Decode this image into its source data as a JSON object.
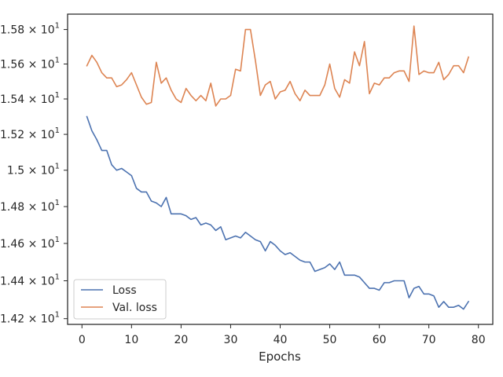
{
  "chart_data": {
    "type": "line",
    "xlabel": "Epochs",
    "ylabel": "",
    "xlim": [
      -2.9,
      82.9
    ],
    "ylim": [
      14.17,
      15.89
    ],
    "x_ticks": [
      0,
      10,
      20,
      30,
      40,
      50,
      60,
      70,
      80
    ],
    "x_tick_labels": [
      "0",
      "10",
      "20",
      "30",
      "40",
      "50",
      "60",
      "70",
      "80"
    ],
    "y_ticks": [
      14.2,
      14.4,
      14.6,
      14.8,
      15.0,
      15.2,
      15.4,
      15.6,
      15.8
    ],
    "y_tick_labels": [
      {
        "mantissa": "1.42",
        "exp": "1"
      },
      {
        "mantissa": "1.44",
        "exp": "1"
      },
      {
        "mantissa": "1.46",
        "exp": "1"
      },
      {
        "mantissa": "1.48",
        "exp": "1"
      },
      {
        "mantissa": "1.5",
        "exp": "1"
      },
      {
        "mantissa": "1.52",
        "exp": "1"
      },
      {
        "mantissa": "1.54",
        "exp": "1"
      },
      {
        "mantissa": "1.56",
        "exp": "1"
      },
      {
        "mantissa": "1.58",
        "exp": "1"
      }
    ],
    "y_scale": "log",
    "grid": false,
    "legend_position": "lower-left",
    "x": [
      1,
      2,
      3,
      4,
      5,
      6,
      7,
      8,
      9,
      10,
      11,
      12,
      13,
      14,
      15,
      16,
      17,
      18,
      19,
      20,
      21,
      22,
      23,
      24,
      25,
      26,
      27,
      28,
      29,
      30,
      31,
      32,
      33,
      34,
      35,
      36,
      37,
      38,
      39,
      40,
      41,
      42,
      43,
      44,
      45,
      46,
      47,
      48,
      49,
      50,
      51,
      52,
      53,
      54,
      55,
      56,
      57,
      58,
      59,
      60,
      61,
      62,
      63,
      64,
      65,
      66,
      67,
      68,
      69,
      70,
      71,
      72,
      73,
      74,
      75,
      76,
      77,
      78
    ],
    "series": [
      {
        "name": "Loss",
        "color": "#4c72b0",
        "values": [
          15.3,
          15.22,
          15.17,
          15.11,
          15.11,
          15.03,
          15.0,
          15.01,
          14.99,
          14.97,
          14.9,
          14.88,
          14.88,
          14.83,
          14.82,
          14.8,
          14.85,
          14.76,
          14.76,
          14.76,
          14.75,
          14.73,
          14.74,
          14.7,
          14.71,
          14.7,
          14.67,
          14.69,
          14.62,
          14.63,
          14.64,
          14.63,
          14.66,
          14.64,
          14.62,
          14.61,
          14.56,
          14.61,
          14.59,
          14.56,
          14.54,
          14.55,
          14.53,
          14.51,
          14.5,
          14.5,
          14.45,
          14.46,
          14.47,
          14.49,
          14.46,
          14.5,
          14.43,
          14.43,
          14.43,
          14.42,
          14.39,
          14.36,
          14.36,
          14.35,
          14.39,
          14.39,
          14.4,
          14.4,
          14.4,
          14.31,
          14.36,
          14.37,
          14.33,
          14.33,
          14.32,
          14.26,
          14.29,
          14.26,
          14.26,
          14.27,
          14.25,
          14.29
        ]
      },
      {
        "name": "Val. loss",
        "color": "#dd8452",
        "values": [
          15.59,
          15.65,
          15.61,
          15.55,
          15.52,
          15.52,
          15.47,
          15.48,
          15.51,
          15.55,
          15.48,
          15.41,
          15.37,
          15.38,
          15.61,
          15.49,
          15.52,
          15.45,
          15.4,
          15.38,
          15.46,
          15.42,
          15.39,
          15.42,
          15.39,
          15.49,
          15.36,
          15.4,
          15.4,
          15.42,
          15.57,
          15.56,
          15.8,
          15.8,
          15.62,
          15.42,
          15.48,
          15.5,
          15.4,
          15.44,
          15.45,
          15.5,
          15.43,
          15.39,
          15.45,
          15.42,
          15.42,
          15.42,
          15.48,
          15.6,
          15.46,
          15.41,
          15.51,
          15.49,
          15.67,
          15.59,
          15.73,
          15.43,
          15.49,
          15.48,
          15.52,
          15.52,
          15.55,
          15.56,
          15.56,
          15.5,
          15.82,
          15.54,
          15.56,
          15.55,
          15.55,
          15.61,
          15.51,
          15.54,
          15.59,
          15.59,
          15.55,
          15.64
        ]
      }
    ]
  }
}
